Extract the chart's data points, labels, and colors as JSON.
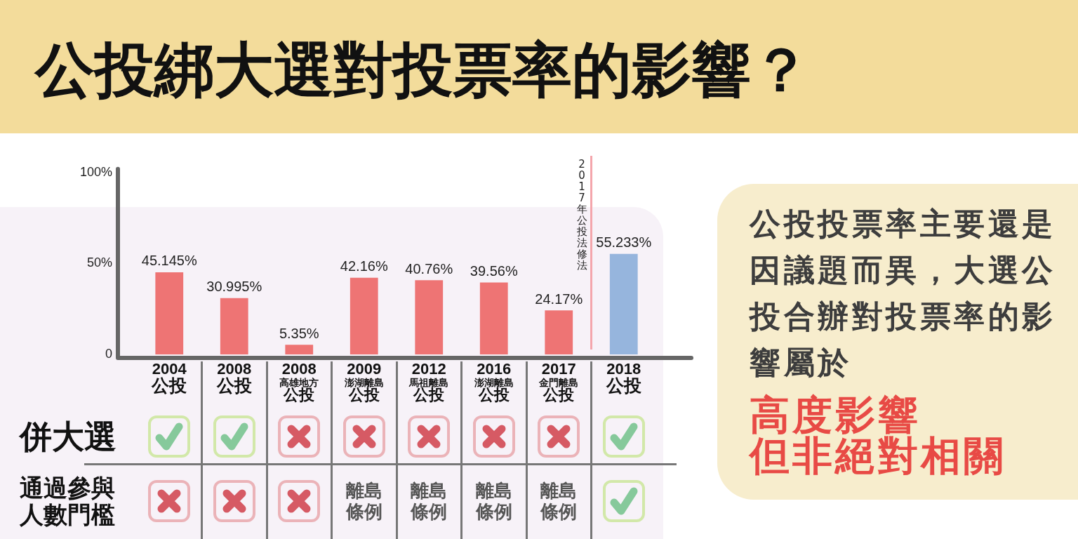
{
  "chart_data": {
    "type": "bar",
    "title": "公投綁大選對投票率的影響？",
    "categories": [
      "2004\n公投",
      "2008\n公投",
      "2008\n高雄地方公投",
      "2009\n澎湖離島公投",
      "2012\n馬祖離島公投",
      "2016\n澎湖離島公投",
      "2017\n金門離島公投",
      "2018\n公投"
    ],
    "values": [
      45.145,
      30.995,
      5.35,
      42.16,
      40.76,
      39.56,
      24.17,
      55.233
    ],
    "value_labels": [
      "45.145%",
      "30.995%",
      "5.35%",
      "42.16%",
      "40.76%",
      "39.56%",
      "24.17%",
      "55.233%"
    ],
    "colors": [
      "#ee7474",
      "#ee7474",
      "#ee7474",
      "#ee7474",
      "#ee7474",
      "#ee7474",
      "#ee7474",
      "#96b5dd"
    ],
    "ylim": [
      0,
      100
    ],
    "yticks": [
      {
        "value": 0,
        "label": "0"
      },
      {
        "value": 50,
        "label": "50%"
      },
      {
        "value": 100,
        "label": "100%"
      }
    ],
    "annotations": [
      "併大選",
      "通過參與人數門檻",
      "離島條例",
      "離島條例",
      "離島條例",
      "離島條例",
      "公投投票率主要還是因議題而異，大選公投合辦對投票率的影響屬於",
      "高度影響",
      "但非絕對相關",
      "2017年公投法修法"
    ]
  }
}
